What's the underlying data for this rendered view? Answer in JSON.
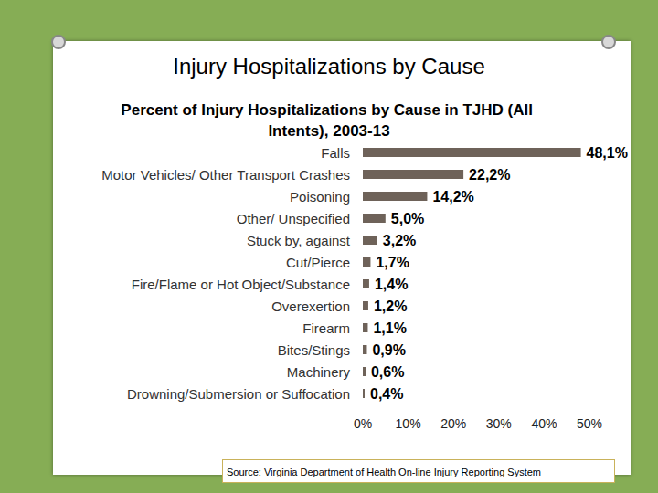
{
  "chart_data": {
    "type": "bar",
    "title": "Injury Hospitalizations by Cause",
    "subtitle": "Percent of Injury Hospitalizations by Cause in TJHD (All Intents), 2003-13",
    "source": "Source: Virginia Department of Health On-line Injury Reporting System",
    "orientation": "horizontal",
    "categories": [
      "Falls",
      "Motor Vehicles/ Other Transport Crashes",
      "Poisoning",
      "Other/ Unspecified",
      "Stuck by, against",
      "Cut/Pierce",
      "Fire/Flame or Hot Object/Substance",
      "Overexertion",
      "Firearm",
      "Bites/Stings",
      "Machinery",
      "Drowning/Submersion or Suffocation"
    ],
    "values": [
      48.1,
      22.2,
      14.2,
      5.0,
      3.2,
      1.7,
      1.4,
      1.2,
      1.1,
      0.9,
      0.6,
      0.4
    ],
    "value_labels": [
      "48,1%",
      "22,2%",
      "14,2%",
      "5,0%",
      "3,2%",
      "1,7%",
      "1,4%",
      "1,2%",
      "1,1%",
      "0,9%",
      "0,6%",
      "0,4%"
    ],
    "data_labels": true,
    "color": "#6e6259",
    "xlim": [
      0,
      50
    ],
    "xticks": [
      {
        "value": 0,
        "label": "0%"
      },
      {
        "value": 10,
        "label": "10%"
      },
      {
        "value": 20,
        "label": "20%"
      },
      {
        "value": 30,
        "label": "30%"
      },
      {
        "value": 40,
        "label": "40%"
      },
      {
        "value": 50,
        "label": "50%"
      }
    ],
    "grid": false
  }
}
